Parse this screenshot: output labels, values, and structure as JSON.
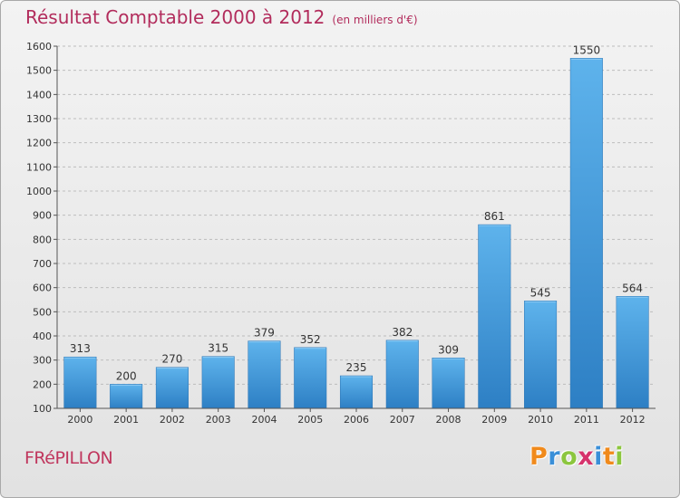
{
  "chart_data": {
    "type": "bar",
    "title": "Résultat Comptable 2000 à 2012",
    "subtitle": "(en milliers d'€)",
    "categories": [
      "2000",
      "2001",
      "2002",
      "2003",
      "2004",
      "2005",
      "2006",
      "2007",
      "2008",
      "2009",
      "2010",
      "2011",
      "2012"
    ],
    "values": [
      313,
      200,
      270,
      315,
      379,
      352,
      235,
      382,
      309,
      861,
      545,
      1550,
      564
    ],
    "ylim": [
      100,
      1600
    ],
    "yticks": [
      100,
      200,
      300,
      400,
      500,
      600,
      700,
      800,
      900,
      1000,
      1100,
      1200,
      1300,
      1400,
      1500,
      1600
    ],
    "grid": true,
    "bar_color": "#4a9fdf"
  },
  "footer": {
    "town": "FRéPILLON",
    "brand_letters": [
      "P",
      "r",
      "o",
      "x",
      "i",
      "t",
      "i"
    ],
    "brand_colors": [
      "#f08a1c",
      "#3a8fd8",
      "#8cc63e",
      "#d6336c",
      "#3a8fd8",
      "#f08a1c",
      "#8cc63e"
    ]
  }
}
